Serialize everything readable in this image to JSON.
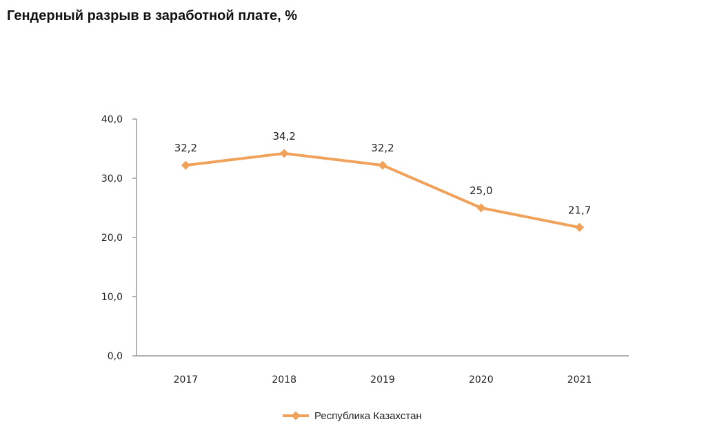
{
  "title": "Гендерный разрыв в заработной плате, %",
  "chart_data": {
    "type": "line",
    "categories": [
      "2017",
      "2018",
      "2019",
      "2020",
      "2021"
    ],
    "series": [
      {
        "name": "Республика Казахстан",
        "values": [
          32.2,
          34.2,
          32.2,
          25.0,
          21.7
        ],
        "labels": [
          "32,2",
          "34,2",
          "32,2",
          "25,0",
          "21,7"
        ],
        "color": "#F0A25A",
        "marker": "diamond"
      }
    ],
    "yticks": [
      "0,0",
      "10,0",
      "20,0",
      "30,0",
      "40,0"
    ],
    "ylim": [
      0,
      40
    ],
    "grid": false,
    "legend_position": "bottom-center",
    "axis_color": "#9A9A9A"
  }
}
